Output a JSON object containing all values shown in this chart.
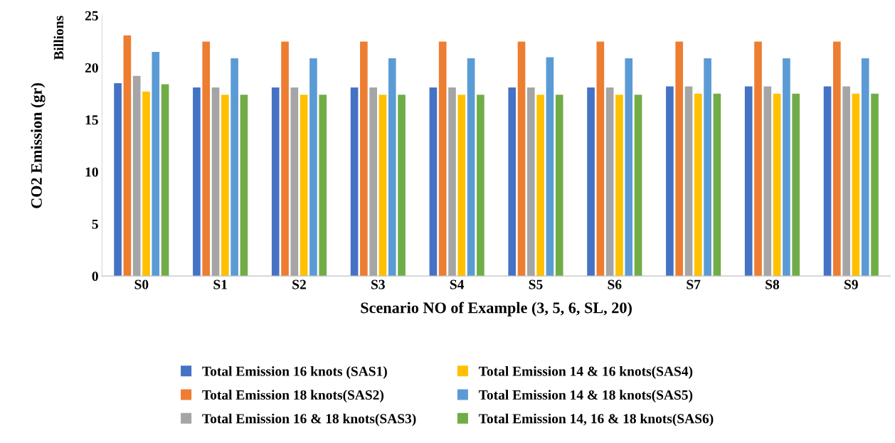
{
  "chart_data": {
    "type": "bar",
    "xlabel": "Scenario NO of Example (3, 5, 6, SL, 20)",
    "ylabel": "CO2 Emission (gr)",
    "annotations": [
      "Billions"
    ],
    "categories": [
      "S0",
      "S1",
      "S2",
      "S3",
      "S4",
      "S5",
      "S6",
      "S7",
      "S8",
      "S9"
    ],
    "series": [
      {
        "name": "Total Emission 16 knots (SAS1)",
        "color": "#4472c4",
        "values": [
          18.5,
          18.1,
          18.1,
          18.1,
          18.1,
          18.1,
          18.1,
          18.2,
          18.2,
          18.2
        ]
      },
      {
        "name": "Total Emission 18 knots(SAS2)",
        "color": "#ed7d31",
        "values": [
          23.1,
          22.5,
          22.5,
          22.5,
          22.5,
          22.5,
          22.5,
          22.5,
          22.5,
          22.5
        ]
      },
      {
        "name": "Total Emission 16 & 18 knots(SAS3)",
        "color": "#a5a5a5",
        "values": [
          19.2,
          18.1,
          18.1,
          18.1,
          18.1,
          18.1,
          18.1,
          18.2,
          18.2,
          18.2
        ]
      },
      {
        "name": "Total Emission 14 & 16 knots(SAS4)",
        "color": "#ffc000",
        "values": [
          17.7,
          17.4,
          17.4,
          17.4,
          17.4,
          17.4,
          17.4,
          17.5,
          17.5,
          17.5
        ]
      },
      {
        "name": "Total Emission 14 & 18 knots(SAS5)",
        "color": "#5b9bd5",
        "values": [
          21.5,
          20.9,
          20.9,
          20.9,
          20.9,
          21.0,
          20.9,
          20.9,
          20.9,
          20.9
        ]
      },
      {
        "name": "Total Emission 14, 16 & 18 knots(SAS6)",
        "color": "#70ad47",
        "values": [
          18.4,
          17.4,
          17.4,
          17.4,
          17.4,
          17.4,
          17.4,
          17.5,
          17.5,
          17.5
        ]
      }
    ],
    "ylim": [
      0,
      25
    ],
    "yticks": [
      0,
      5,
      10,
      15,
      20,
      25
    ],
    "grid": false,
    "legend": "bottom"
  }
}
